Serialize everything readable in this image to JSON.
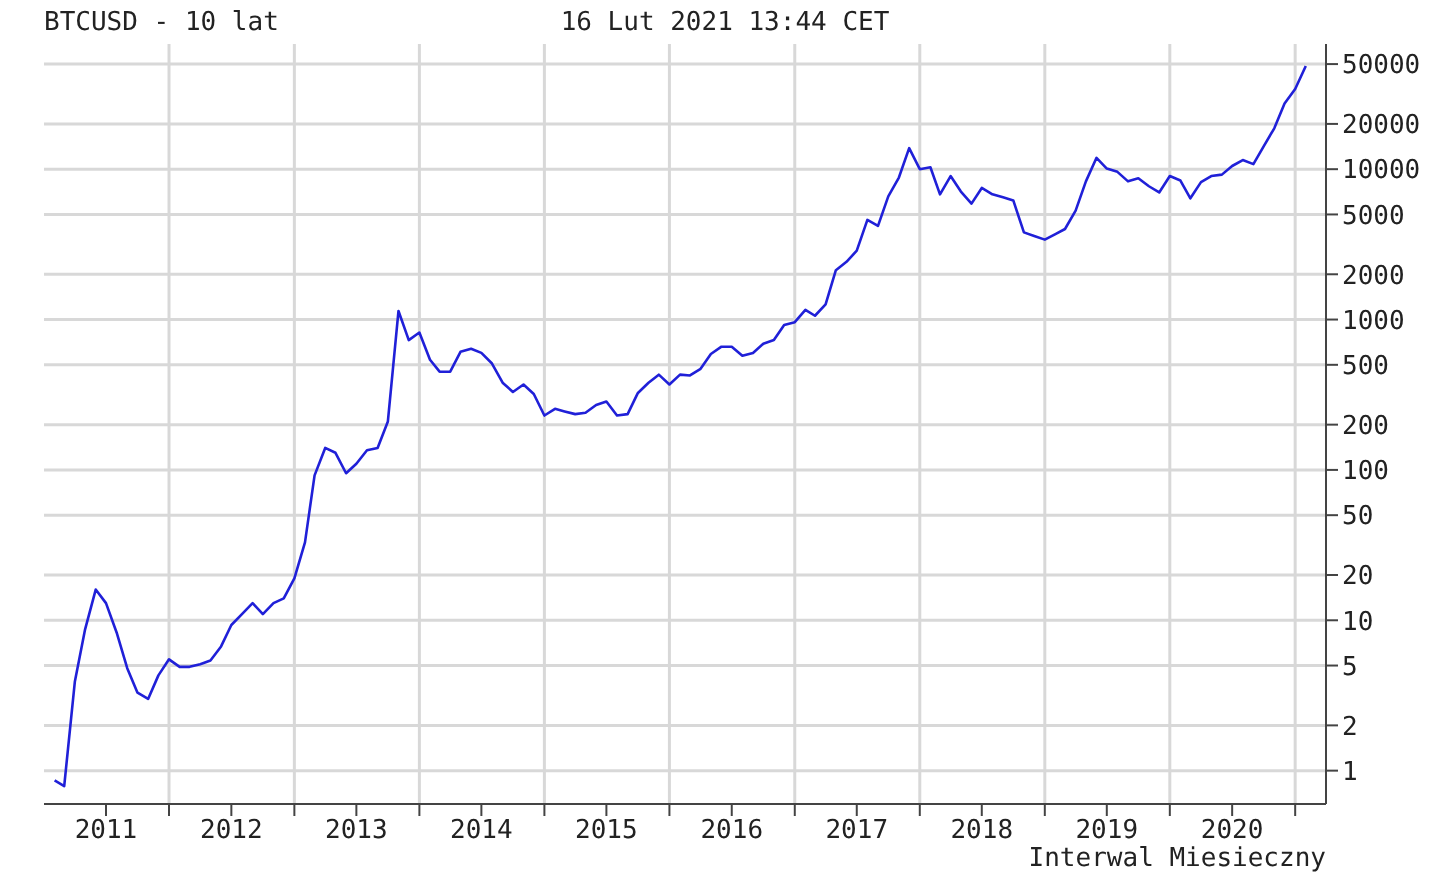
{
  "chart_data": {
    "type": "line",
    "title": "BTCUSD - 10 lat",
    "subtitle": "16 Lut 2021 13:44 CET",
    "annotations": [
      "Interwal Miesieczny"
    ],
    "x": [
      "2011-02",
      "2011-03",
      "2011-04",
      "2011-05",
      "2011-06",
      "2011-07",
      "2011-08",
      "2011-09",
      "2011-10",
      "2011-11",
      "2011-12",
      "2012-01",
      "2012-02",
      "2012-03",
      "2012-04",
      "2012-05",
      "2012-06",
      "2012-07",
      "2012-08",
      "2012-09",
      "2012-10",
      "2012-11",
      "2012-12",
      "2013-01",
      "2013-02",
      "2013-03",
      "2013-04",
      "2013-05",
      "2013-06",
      "2013-07",
      "2013-08",
      "2013-09",
      "2013-10",
      "2013-11",
      "2013-12",
      "2014-01",
      "2014-02",
      "2014-03",
      "2014-04",
      "2014-05",
      "2014-06",
      "2014-07",
      "2014-08",
      "2014-09",
      "2014-10",
      "2014-11",
      "2014-12",
      "2015-01",
      "2015-02",
      "2015-03",
      "2015-04",
      "2015-05",
      "2015-06",
      "2015-07",
      "2015-08",
      "2015-09",
      "2015-10",
      "2015-11",
      "2015-12",
      "2016-01",
      "2016-02",
      "2016-03",
      "2016-04",
      "2016-05",
      "2016-06",
      "2016-07",
      "2016-08",
      "2016-09",
      "2016-10",
      "2016-11",
      "2016-12",
      "2017-01",
      "2017-02",
      "2017-03",
      "2017-04",
      "2017-05",
      "2017-06",
      "2017-07",
      "2017-08",
      "2017-09",
      "2017-10",
      "2017-11",
      "2017-12",
      "2018-01",
      "2018-02",
      "2018-03",
      "2018-04",
      "2018-05",
      "2018-06",
      "2018-07",
      "2018-08",
      "2018-09",
      "2018-10",
      "2018-11",
      "2018-12",
      "2019-01",
      "2019-02",
      "2019-03",
      "2019-04",
      "2019-05",
      "2019-06",
      "2019-07",
      "2019-08",
      "2019-09",
      "2019-10",
      "2019-11",
      "2019-12",
      "2020-01",
      "2020-02",
      "2020-03",
      "2020-04",
      "2020-05",
      "2020-06",
      "2020-07",
      "2020-08",
      "2020-09",
      "2020-10",
      "2020-11",
      "2020-12",
      "2021-01",
      "2021-02"
    ],
    "series": [
      {
        "color": "#2020d8",
        "values": [
          0.86,
          0.79,
          3.9,
          8.7,
          16,
          13,
          8.3,
          4.8,
          3.3,
          3.0,
          4.3,
          5.5,
          4.9,
          4.9,
          5.1,
          5.4,
          6.7,
          9.3,
          11,
          13,
          11,
          13,
          14,
          19,
          33,
          92,
          140,
          130,
          95,
          110,
          135,
          140,
          210,
          1140,
          730,
          820,
          540,
          450,
          450,
          610,
          640,
          600,
          510,
          380,
          330,
          370,
          320,
          230,
          255,
          245,
          235,
          240,
          270,
          285,
          230,
          235,
          325,
          380,
          430,
          370,
          430,
          425,
          470,
          590,
          660,
          660,
          575,
          600,
          690,
          730,
          920,
          960,
          1160,
          1060,
          1260,
          2130,
          2420,
          2870,
          4600,
          4200,
          6600,
          8800,
          13800,
          10000,
          10300,
          6800,
          9000,
          7100,
          5900,
          7500,
          6800,
          6500,
          6200,
          3800,
          3600,
          3400,
          3700,
          4000,
          5300,
          8300,
          11900,
          10100,
          9600,
          8300,
          8700,
          7700,
          7000,
          9000,
          8400,
          6400,
          8200,
          9000,
          9200,
          10500,
          11500,
          10800,
          14200,
          18700,
          27300,
          34100,
          48500
        ]
      }
    ],
    "xlim": [
      "2011-01",
      "2021-04"
    ],
    "xticks": [
      {
        "value": "2011-07",
        "label": "2011"
      },
      {
        "value": "2012-01",
        "label": null
      },
      {
        "value": "2012-07",
        "label": "2012"
      },
      {
        "value": "2013-01",
        "label": null
      },
      {
        "value": "2013-07",
        "label": "2013"
      },
      {
        "value": "2014-01",
        "label": null
      },
      {
        "value": "2014-07",
        "label": "2014"
      },
      {
        "value": "2015-01",
        "label": null
      },
      {
        "value": "2015-07",
        "label": "2015"
      },
      {
        "value": "2016-01",
        "label": null
      },
      {
        "value": "2016-07",
        "label": "2016"
      },
      {
        "value": "2017-01",
        "label": null
      },
      {
        "value": "2017-07",
        "label": "2017"
      },
      {
        "value": "2018-01",
        "label": null
      },
      {
        "value": "2018-07",
        "label": "2018"
      },
      {
        "value": "2019-01",
        "label": null
      },
      {
        "value": "2019-07",
        "label": "2019"
      },
      {
        "value": "2020-01",
        "label": null
      },
      {
        "value": "2020-07",
        "label": "2020"
      },
      {
        "value": "2021-01",
        "label": null
      }
    ],
    "ylim": [
      0.6,
      68000
    ],
    "yticks": [
      1,
      2,
      5,
      10,
      20,
      50,
      100,
      200,
      500,
      1000,
      2000,
      5000,
      10000,
      20000,
      50000
    ],
    "log": true,
    "grid": true,
    "marker": "none"
  }
}
